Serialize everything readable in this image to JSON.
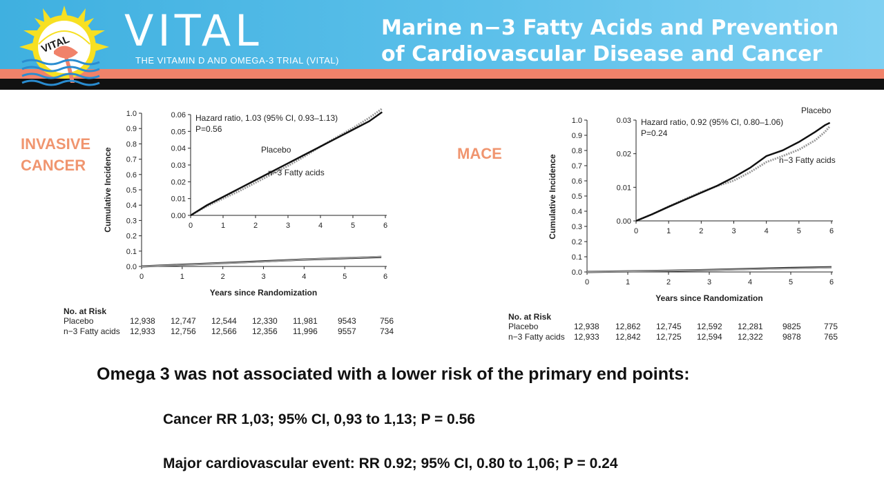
{
  "header": {
    "logo_text": "VITAL",
    "brand": "VITAL",
    "subtitle": "THE VITAMIN D AND OMEGA-3 TRIAL (VITAL)",
    "title_line1": "Marine n−3 Fatty Acids and Prevention",
    "title_line2": "of Cardiovascular Disease and Cancer",
    "colors": {
      "blue": "#4fb8e6",
      "coral": "#f0826a",
      "black": "#111111",
      "sun": "#f7e022"
    }
  },
  "left_label": {
    "line1": "INVASIVE",
    "line2": "CANCER"
  },
  "right_label": "MACE",
  "chart_data": [
    {
      "type": "line",
      "panel": "invasive-cancer",
      "xlabel": "Years since Randomization",
      "ylabel": "Cumulative Incidence",
      "xlim": [
        0,
        6
      ],
      "ylim": [
        0,
        1.0
      ],
      "x_ticks": [
        "0",
        "1",
        "2",
        "3",
        "4",
        "5",
        "6"
      ],
      "y_ticks": [
        "0.0",
        "0.1",
        "0.2",
        "0.3",
        "0.4",
        "0.5",
        "0.6",
        "0.7",
        "0.8",
        "0.9",
        "1.0"
      ],
      "series": [
        {
          "name": "Placebo",
          "color": "#222222",
          "x": [
            0,
            1,
            2,
            3,
            4,
            5,
            5.9
          ],
          "y": [
            0,
            0.011,
            0.022,
            0.033,
            0.045,
            0.054,
            0.062
          ]
        },
        {
          "name": "n−3 Fatty acids",
          "color": "#999999",
          "x": [
            0,
            1,
            2,
            3,
            4,
            5,
            5.9
          ],
          "y": [
            0,
            0.01,
            0.021,
            0.031,
            0.045,
            0.055,
            0.064
          ]
        }
      ],
      "inset": {
        "xlim": [
          0,
          6
        ],
        "ylim": [
          0,
          0.06
        ],
        "x_ticks": [
          "0",
          "1",
          "2",
          "3",
          "4",
          "5",
          "6"
        ],
        "y_ticks": [
          "0.00",
          "0.01",
          "0.02",
          "0.03",
          "0.04",
          "0.05",
          "0.06"
        ],
        "annotation_line1": "Hazard ratio, 1.03 (95% CI, 0.93–1.13)",
        "annotation_line2": "P=0.56",
        "label_placebo": "Placebo",
        "label_treat": "n−3 Fatty acids",
        "series": [
          {
            "name": "Placebo",
            "color": "#111111",
            "x": [
              0,
              0.5,
              1,
              1.5,
              2,
              2.5,
              3,
              3.5,
              4,
              4.5,
              5,
              5.5,
              5.9
            ],
            "y": [
              0,
              0.006,
              0.011,
              0.016,
              0.021,
              0.026,
              0.031,
              0.036,
              0.041,
              0.046,
              0.051,
              0.056,
              0.0615
            ]
          },
          {
            "name": "n−3 Fatty acids",
            "color": "#9a9a9a",
            "x": [
              0,
              0.5,
              1,
              1.5,
              2,
              2.5,
              3,
              3.5,
              4,
              4.5,
              5,
              5.5,
              5.9
            ],
            "y": [
              0,
              0.0055,
              0.01,
              0.0145,
              0.0195,
              0.0245,
              0.0295,
              0.035,
              0.041,
              0.0465,
              0.052,
              0.058,
              0.0635
            ]
          }
        ]
      },
      "risk_table": {
        "title": "No. at Risk",
        "rows": [
          {
            "label": "Placebo",
            "values": [
              "12,938",
              "12,747",
              "12,544",
              "12,330",
              "11,981",
              "9543",
              "756"
            ]
          },
          {
            "label": "n−3 Fatty acids",
            "values": [
              "12,933",
              "12,756",
              "12,566",
              "12,356",
              "11,996",
              "9557",
              "734"
            ]
          }
        ]
      }
    },
    {
      "type": "line",
      "panel": "mace",
      "xlabel": "Years since Randomization",
      "ylabel": "Cumulative Incidence",
      "xlim": [
        0,
        6
      ],
      "ylim": [
        0,
        1.0
      ],
      "x_ticks": [
        "0",
        "1",
        "2",
        "3",
        "4",
        "5",
        "6"
      ],
      "y_ticks": [
        "0.0",
        "0.1",
        "0.2",
        "0.3",
        "0.4",
        "0.5",
        "0.6",
        "0.7",
        "0.8",
        "0.9",
        "1.0"
      ],
      "series": [
        {
          "name": "Placebo",
          "color": "#222222",
          "x": [
            0,
            1,
            2,
            3,
            4,
            5,
            6
          ],
          "y": [
            0,
            0.004,
            0.008,
            0.013,
            0.02,
            0.026,
            0.031
          ]
        },
        {
          "name": "n−3 Fatty acids",
          "color": "#999999",
          "x": [
            0,
            1,
            2,
            3,
            4,
            5,
            6
          ],
          "y": [
            0,
            0.004,
            0.008,
            0.012,
            0.018,
            0.023,
            0.029
          ]
        }
      ],
      "inset": {
        "xlim": [
          0,
          6
        ],
        "ylim": [
          0,
          0.03
        ],
        "x_ticks": [
          "0",
          "1",
          "2",
          "3",
          "4",
          "5",
          "6"
        ],
        "y_ticks": [
          "0.00",
          "0.01",
          "0.02",
          "0.03"
        ],
        "annotation_line1": "Hazard ratio, 0.92 (95% CI, 0.80–1.06)",
        "annotation_line2": "P=0.24",
        "label_placebo": "Placebo",
        "label_treat": "n−3 Fatty acids",
        "series": [
          {
            "name": "Placebo",
            "color": "#111111",
            "x": [
              0,
              0.5,
              1,
              1.5,
              2,
              2.5,
              3,
              3.5,
              4,
              4.5,
              5,
              5.5,
              5.8,
              5.95
            ],
            "y": [
              0,
              0.002,
              0.0042,
              0.0063,
              0.0084,
              0.0105,
              0.013,
              0.0158,
              0.0193,
              0.021,
              0.0235,
              0.0265,
              0.0285,
              0.0292
            ]
          },
          {
            "name": "n−3 Fatty acids",
            "color": "#9a9a9a",
            "x": [
              0,
              0.5,
              1,
              1.5,
              2,
              2.5,
              3,
              3.5,
              4,
              4.5,
              5,
              5.5,
              5.8,
              5.95
            ],
            "y": [
              0,
              0.002,
              0.0043,
              0.0065,
              0.0086,
              0.0104,
              0.012,
              0.0145,
              0.0175,
              0.0193,
              0.0212,
              0.024,
              0.0265,
              0.0282
            ]
          }
        ]
      },
      "risk_table": {
        "title": "No. at Risk",
        "rows": [
          {
            "label": "Placebo",
            "values": [
              "12,938",
              "12,862",
              "12,745",
              "12,592",
              "12,281",
              "9825",
              "775"
            ]
          },
          {
            "label": "n−3 Fatty acids",
            "values": [
              "12,933",
              "12,842",
              "12,725",
              "12,594",
              "12,322",
              "9878",
              "765"
            ]
          }
        ]
      }
    }
  ],
  "summary": {
    "headline": "Omega 3 was not associated with a lower risk of  the primary end points:",
    "cancer": "Cancer RR 1,03; 95% CI,  0,93 to 1,13; P = 0.56",
    "cardio": "Major cardiovascular event:  RR 0.92; 95% CI, 0.80 to 1,06; P = 0.24"
  }
}
